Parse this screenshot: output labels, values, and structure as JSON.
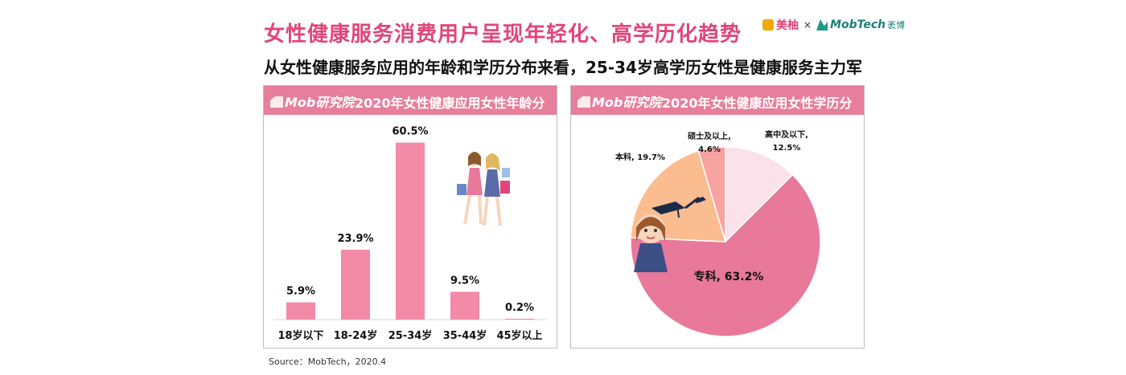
{
  "header": {
    "title": "女性健康服务消费用户呈现年轻化、高学历化趋势",
    "subtitle": "从女性健康服务应用的年龄和学历分布来看，25-34岁高学历女性是健康服务主力军"
  },
  "brand": {
    "meiyou": "美柚",
    "times": "×",
    "mobtech": "MobTech",
    "mobtech_cn": "袤博"
  },
  "panel_left": {
    "logo_text": "Mob研究院",
    "title": "2020年女性健康应用女性年龄分布"
  },
  "panel_right": {
    "logo_text": "Mob研究院",
    "title": "2020年女性健康应用女性学历分布"
  },
  "source": "Source：MobTech，2020.4",
  "colors": {
    "title": "#e0457b",
    "bar": "#f28aa8",
    "panel_header": "#e77e9c",
    "pie": [
      "#fbe1ea",
      "#e8799b",
      "#fbbd90",
      "#f7a3a2"
    ]
  },
  "chart_data": [
    {
      "type": "bar",
      "title": "2020年女性健康应用女性年龄分布",
      "categories": [
        "18岁以下",
        "18-24岁",
        "25-34岁",
        "35-44岁",
        "45岁以上"
      ],
      "values": [
        5.9,
        23.9,
        60.5,
        9.5,
        0.2
      ],
      "value_labels": [
        "5.9%",
        "23.9%",
        "60.5%",
        "9.5%",
        "0.2%"
      ],
      "ylim": [
        0,
        70
      ],
      "grid": false,
      "legend": "none"
    },
    {
      "type": "pie",
      "title": "2020年女性健康应用女性学历分布",
      "slices": [
        {
          "label": "高中及以下,",
          "value_text": "12.5%",
          "value": 12.5
        },
        {
          "label": "专科,",
          "value_text": "63.2%",
          "value": 63.2
        },
        {
          "label": "本科,",
          "value_text": "19.7%",
          "value": 19.7
        },
        {
          "label": "硕士及以上,",
          "value_text": "4.6%",
          "value": 4.6
        }
      ],
      "legend": "none"
    }
  ]
}
